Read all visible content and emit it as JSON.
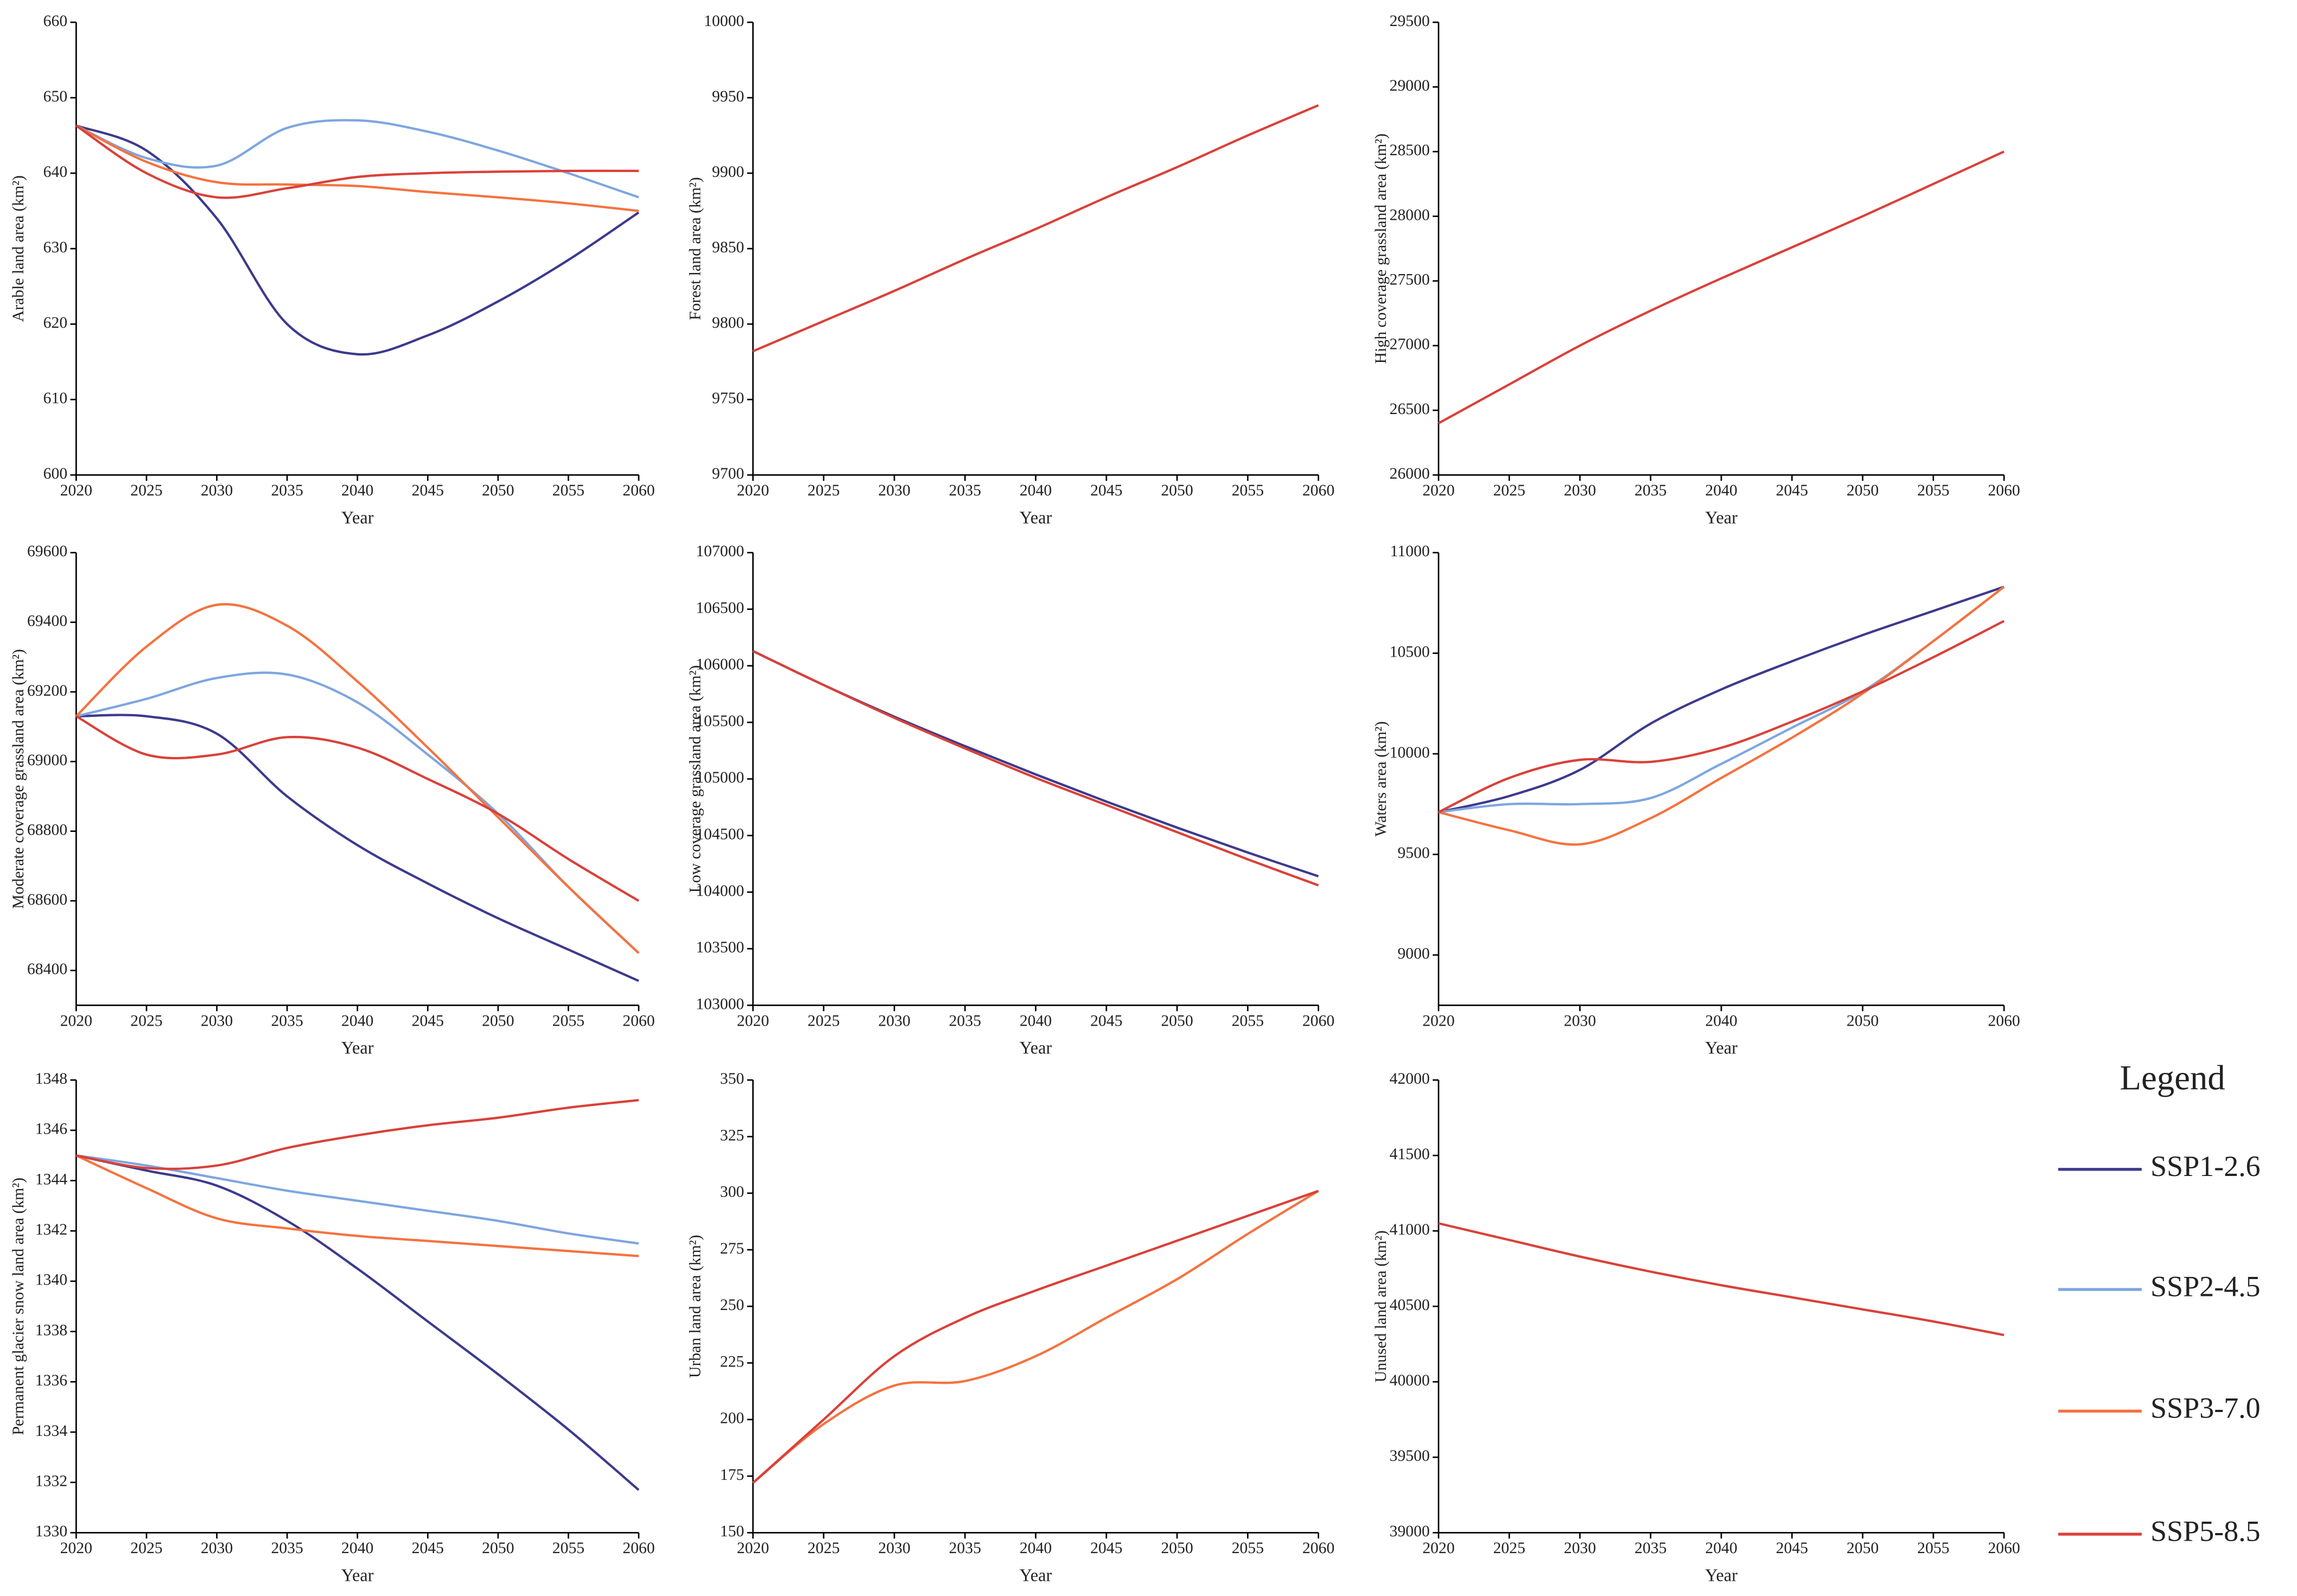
{
  "chart_data": [
    {
      "type": "line",
      "y_label": "Arable land area (km²)",
      "x_label": "Year",
      "x": [
        2020,
        2025,
        2030,
        2035,
        2040,
        2045,
        2050,
        2055,
        2060
      ],
      "xlim": [
        2020,
        2060
      ],
      "xticks": [
        2020,
        2025,
        2030,
        2035,
        2040,
        2045,
        2050,
        2055,
        2060
      ],
      "ylim": [
        600,
        660
      ],
      "yticks": [
        600,
        610,
        620,
        630,
        640,
        650,
        660
      ],
      "series": [
        {
          "name": "SSP1-2.6",
          "color": "#3d3a8c",
          "values": [
            646.3,
            643,
            634,
            620,
            616,
            618.5,
            623,
            628.5,
            634.8
          ]
        },
        {
          "name": "SSP2-4.5",
          "color": "#7ea6e0",
          "values": [
            646.3,
            642,
            641,
            646,
            647,
            645.5,
            643,
            640,
            636.8
          ]
        },
        {
          "name": "SSP3-7.0",
          "color": "#f4733f",
          "values": [
            646.3,
            641.5,
            638.8,
            638.5,
            638.3,
            637.5,
            636.8,
            636,
            635
          ]
        },
        {
          "name": "SSP5-8.5",
          "color": "#d9413a",
          "values": [
            646.3,
            640,
            636.8,
            638,
            639.5,
            640,
            640.2,
            640.3,
            640.3
          ]
        }
      ]
    },
    {
      "type": "line",
      "y_label": "Forest land area (km²)",
      "x_label": "Year",
      "x": [
        2020,
        2025,
        2030,
        2035,
        2040,
        2045,
        2050,
        2055,
        2060
      ],
      "xlim": [
        2020,
        2060
      ],
      "xticks": [
        2020,
        2025,
        2030,
        2035,
        2040,
        2045,
        2050,
        2055,
        2060
      ],
      "ylim": [
        9700,
        10000
      ],
      "yticks": [
        9700,
        9750,
        9800,
        9850,
        9900,
        9950,
        10000
      ],
      "series": [
        {
          "name": "SSP5-8.5",
          "color": "#d9413a",
          "values": [
            9782,
            9802,
            9822,
            9843,
            9863,
            9884,
            9904,
            9925,
            9945
          ]
        }
      ]
    },
    {
      "type": "line",
      "y_label": "High coverage grassland area (km²)",
      "x_label": "Year",
      "x": [
        2020,
        2025,
        2030,
        2035,
        2040,
        2045,
        2050,
        2055,
        2060
      ],
      "xlim": [
        2020,
        2060
      ],
      "xticks": [
        2020,
        2025,
        2030,
        2035,
        2040,
        2045,
        2050,
        2055,
        2060
      ],
      "ylim": [
        26000,
        29500
      ],
      "yticks": [
        26000,
        26500,
        27000,
        27500,
        28000,
        28500,
        29000,
        29500
      ],
      "series": [
        {
          "name": "SSP5-8.5",
          "color": "#d9413a",
          "values": [
            26400,
            26700,
            27000,
            27270,
            27520,
            27760,
            28000,
            28250,
            28500
          ]
        }
      ]
    },
    {
      "type": "line",
      "y_label": "Moderate coverage grassland area (km²)",
      "x_label": "Year",
      "x": [
        2020,
        2025,
        2030,
        2035,
        2040,
        2045,
        2050,
        2055,
        2060
      ],
      "xlim": [
        2020,
        2060
      ],
      "xticks": [
        2020,
        2025,
        2030,
        2035,
        2040,
        2045,
        2050,
        2055,
        2060
      ],
      "ylim": [
        68300,
        69600
      ],
      "yticks": [
        68400,
        68600,
        68800,
        69000,
        69200,
        69400,
        69600
      ],
      "series": [
        {
          "name": "SSP1-2.6",
          "color": "#3d3a8c",
          "values": [
            69130,
            69130,
            69080,
            68900,
            68760,
            68650,
            68550,
            68460,
            68370
          ]
        },
        {
          "name": "SSP2-4.5",
          "color": "#7ea6e0",
          "values": [
            69130,
            69180,
            69240,
            69250,
            69170,
            69020,
            68850,
            68640,
            68450
          ]
        },
        {
          "name": "SSP3-7.0",
          "color": "#f4733f",
          "values": [
            69130,
            69330,
            69450,
            69390,
            69230,
            69040,
            68840,
            68640,
            68450
          ]
        },
        {
          "name": "SSP5-8.5",
          "color": "#d9413a",
          "values": [
            69130,
            69020,
            69020,
            69070,
            69040,
            68950,
            68850,
            68720,
            68600
          ]
        }
      ]
    },
    {
      "type": "line",
      "y_label": "Low coverage grassland area (km²)",
      "x_label": "Year",
      "x": [
        2020,
        2025,
        2030,
        2035,
        2040,
        2045,
        2050,
        2055,
        2060
      ],
      "xlim": [
        2020,
        2060
      ],
      "xticks": [
        2020,
        2025,
        2030,
        2035,
        2040,
        2045,
        2050,
        2055,
        2060
      ],
      "ylim": [
        103000,
        107000
      ],
      "yticks": [
        103000,
        103500,
        104000,
        104500,
        105000,
        105500,
        106000,
        106500,
        107000
      ],
      "series": [
        {
          "name": "SSP1-2.6",
          "color": "#3d3a8c",
          "values": [
            106130,
            105830,
            105550,
            105290,
            105040,
            104800,
            104570,
            104350,
            104140
          ]
        },
        {
          "name": "SSP5-8.5",
          "color": "#d9413a",
          "values": [
            106130,
            105830,
            105540,
            105270,
            105010,
            104770,
            104530,
            104290,
            104060
          ]
        }
      ]
    },
    {
      "type": "line",
      "y_label": "Waters area (km²)",
      "x_label": "Year",
      "x": [
        2020,
        2025,
        2030,
        2035,
        2040,
        2045,
        2050,
        2055,
        2060
      ],
      "xlim": [
        2020,
        2060
      ],
      "xticks": [
        2020,
        2030,
        2040,
        2050,
        2060
      ],
      "ylim": [
        8750,
        11000
      ],
      "yticks": [
        9000,
        9500,
        10000,
        10500,
        11000
      ],
      "series": [
        {
          "name": "SSP1-2.6",
          "color": "#3d3a8c",
          "values": [
            9710,
            9790,
            9920,
            10150,
            10320,
            10460,
            10590,
            10710,
            10830
          ]
        },
        {
          "name": "SSP2-4.5",
          "color": "#7ea6e0",
          "values": [
            9710,
            9750,
            9750,
            9780,
            9950,
            10130,
            10310,
            10560,
            10830
          ]
        },
        {
          "name": "SSP3-7.0",
          "color": "#f4733f",
          "values": [
            9710,
            9620,
            9550,
            9680,
            9880,
            10080,
            10300,
            10560,
            10830
          ]
        },
        {
          "name": "SSP5-8.5",
          "color": "#d9413a",
          "values": [
            9710,
            9880,
            9970,
            9960,
            10030,
            10160,
            10310,
            10480,
            10660
          ]
        }
      ]
    },
    {
      "type": "line",
      "y_label": "Permanent glacier snow land area (km²)",
      "x_label": "Year",
      "x": [
        2020,
        2025,
        2030,
        2035,
        2040,
        2045,
        2050,
        2055,
        2060
      ],
      "xlim": [
        2020,
        2060
      ],
      "xticks": [
        2020,
        2025,
        2030,
        2035,
        2040,
        2045,
        2050,
        2055,
        2060
      ],
      "ylim": [
        1330,
        1348
      ],
      "yticks": [
        1330,
        1332,
        1334,
        1336,
        1338,
        1340,
        1342,
        1344,
        1346,
        1348
      ],
      "series": [
        {
          "name": "SSP1-2.6",
          "color": "#3d3a8c",
          "values": [
            1345,
            1344.4,
            1343.8,
            1342.4,
            1340.5,
            1338.4,
            1336.3,
            1334.1,
            1331.7
          ]
        },
        {
          "name": "SSP2-4.5",
          "color": "#7ea6e0",
          "values": [
            1345,
            1344.6,
            1344.1,
            1343.6,
            1343.2,
            1342.8,
            1342.4,
            1341.9,
            1341.5
          ]
        },
        {
          "name": "SSP3-7.0",
          "color": "#f4733f",
          "values": [
            1345,
            1343.7,
            1342.5,
            1342.1,
            1341.8,
            1341.6,
            1341.4,
            1341.2,
            1341
          ]
        },
        {
          "name": "SSP5-8.5",
          "color": "#d9413a",
          "values": [
            1345,
            1344.5,
            1344.6,
            1345.3,
            1345.8,
            1346.2,
            1346.5,
            1346.9,
            1347.2
          ]
        }
      ]
    },
    {
      "type": "line",
      "y_label": "Urban land area (km²)",
      "x_label": "Year",
      "x": [
        2020,
        2025,
        2030,
        2035,
        2040,
        2045,
        2050,
        2055,
        2060
      ],
      "xlim": [
        2020,
        2060
      ],
      "xticks": [
        2020,
        2025,
        2030,
        2035,
        2040,
        2045,
        2050,
        2055,
        2060
      ],
      "ylim": [
        150,
        350
      ],
      "yticks": [
        150,
        175,
        200,
        225,
        250,
        275,
        300,
        325,
        350
      ],
      "series": [
        {
          "name": "SSP3-7.0",
          "color": "#f4733f",
          "values": [
            172,
            198,
            215,
            217,
            228,
            245,
            262,
            282,
            301
          ]
        },
        {
          "name": "SSP5-8.5",
          "color": "#d9413a",
          "values": [
            172,
            200,
            228,
            245,
            257,
            268,
            279,
            290,
            301
          ]
        }
      ]
    },
    {
      "type": "line",
      "y_label": "Unused land area (km²)",
      "x_label": "Year",
      "x": [
        2020,
        2025,
        2030,
        2035,
        2040,
        2045,
        2050,
        2055,
        2060
      ],
      "xlim": [
        2020,
        2060
      ],
      "xticks": [
        2020,
        2025,
        2030,
        2035,
        2040,
        2045,
        2050,
        2055,
        2060
      ],
      "ylim": [
        39000,
        42000
      ],
      "yticks": [
        39000,
        39500,
        40000,
        40500,
        41000,
        41500,
        42000
      ],
      "series": [
        {
          "name": "SSP5-8.5",
          "color": "#d9413a",
          "values": [
            41050,
            40940,
            40830,
            40730,
            40640,
            40560,
            40480,
            40400,
            40310
          ]
        }
      ]
    }
  ],
  "legend": {
    "title": "Legend",
    "items": [
      {
        "name": "SSP1-2.6",
        "color": "#3d3a8c"
      },
      {
        "name": "SSP2-4.5",
        "color": "#7ea6e0"
      },
      {
        "name": "SSP3-7.0",
        "color": "#f4733f"
      },
      {
        "name": "SSP5-8.5",
        "color": "#d9413a"
      }
    ]
  }
}
